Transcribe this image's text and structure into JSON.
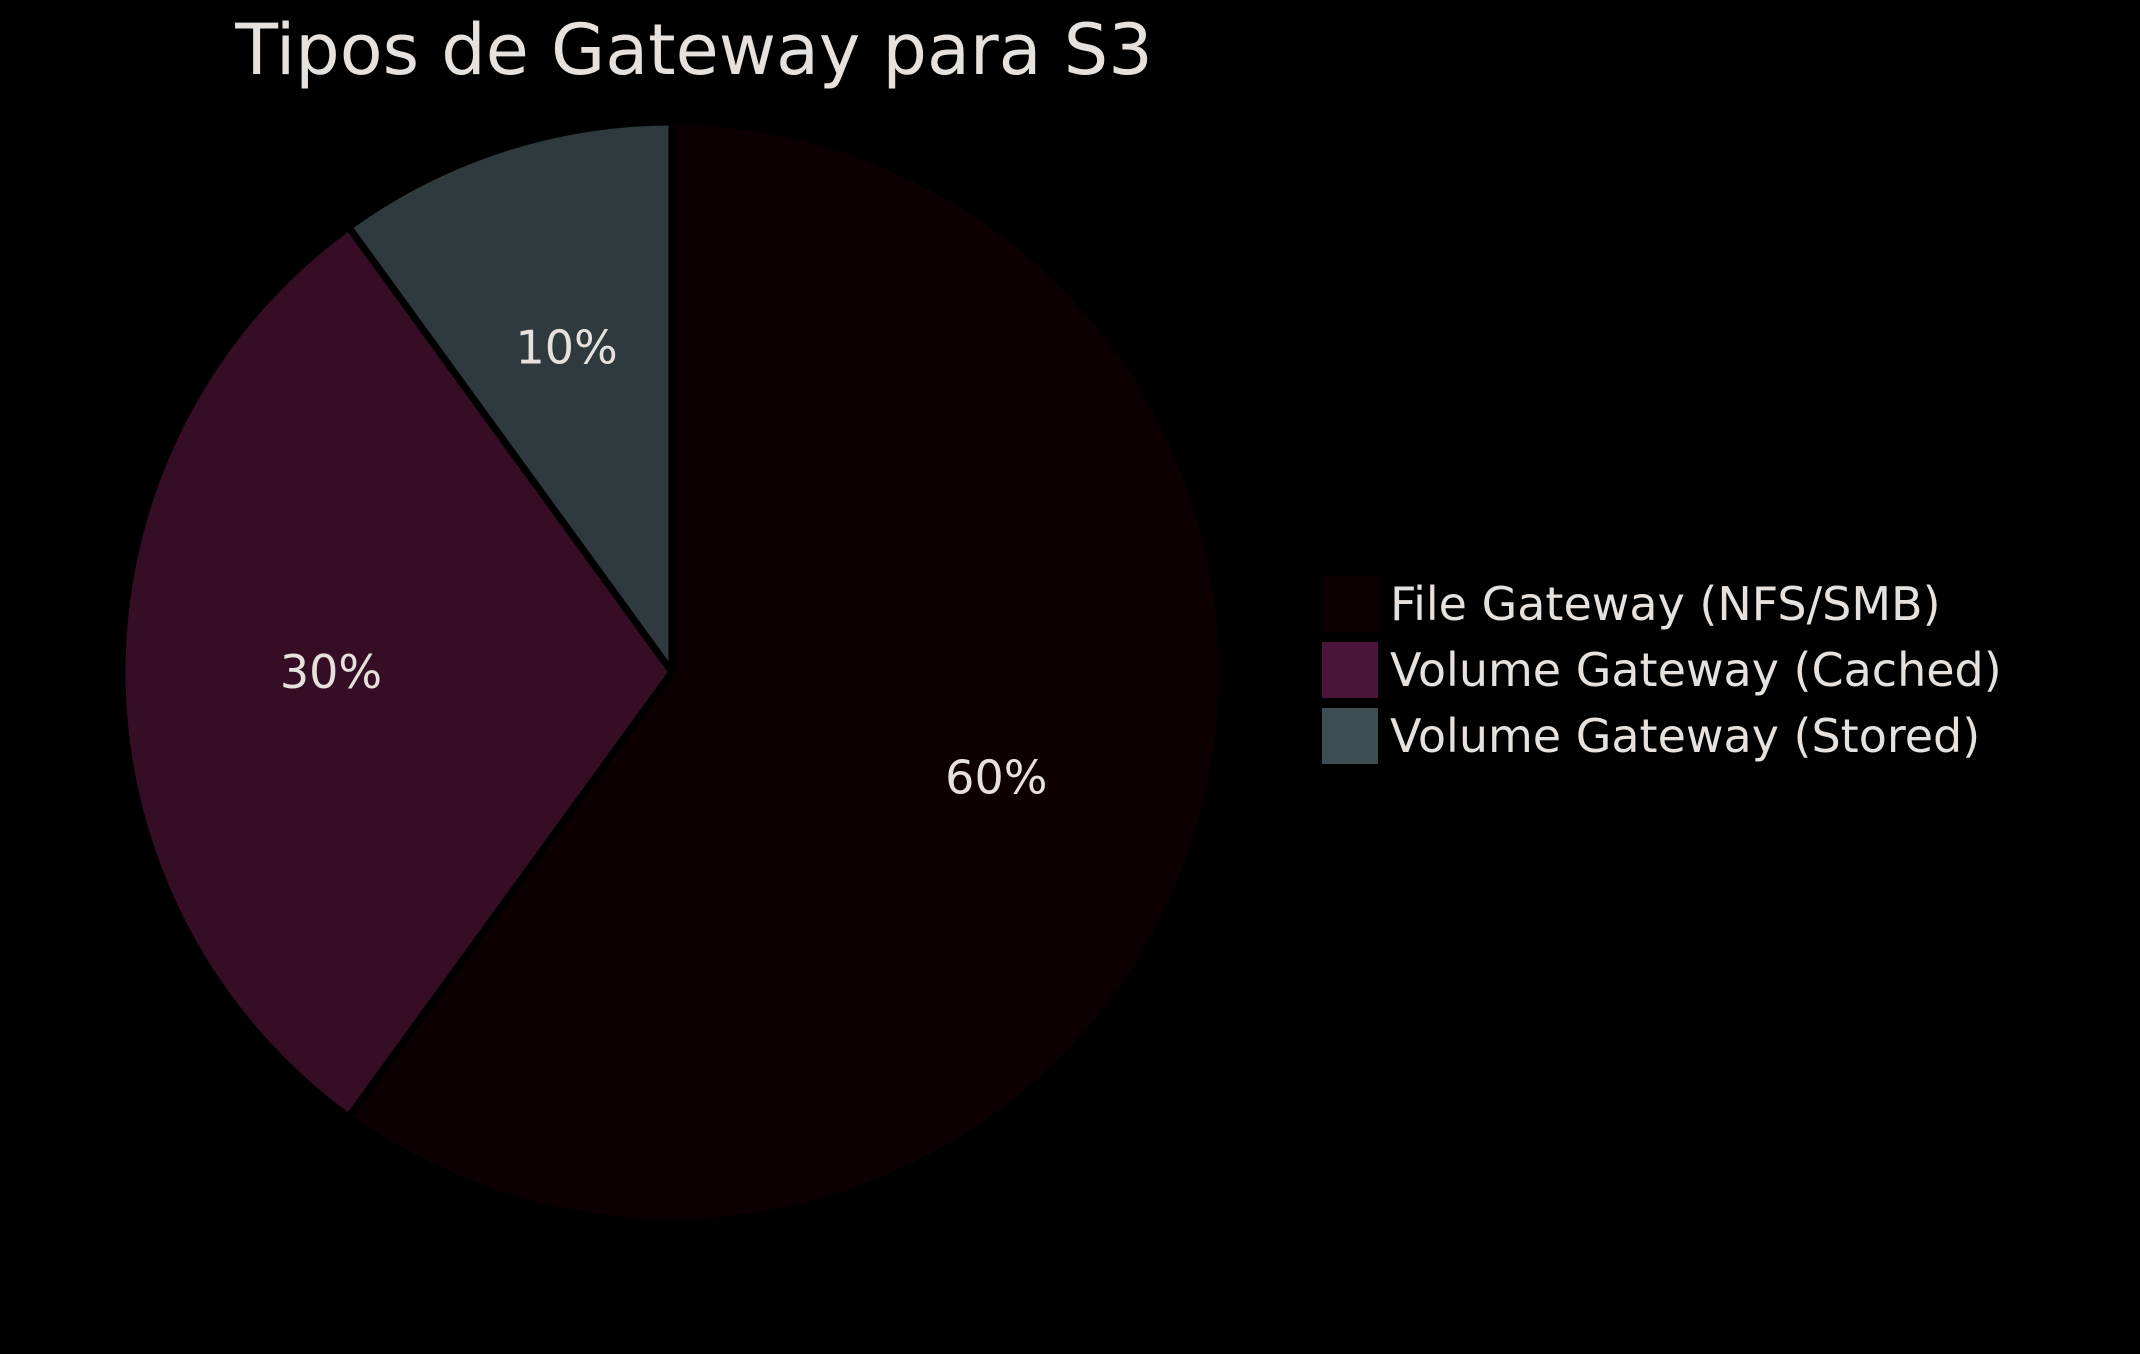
{
  "chart_data": {
    "type": "pie",
    "title": "Tipos de Gateway para S3",
    "slices": [
      {
        "label": "File Gateway (NFS/SMB)",
        "value": 60,
        "display": "60%",
        "color": "#0d0002"
      },
      {
        "label": "Volume Gateway (Cached)",
        "value": 30,
        "display": "30%",
        "color": "#350d24"
      },
      {
        "label": "Volume Gateway (Stored)",
        "value": 10,
        "display": "10%",
        "color": "#2e3a3e"
      }
    ],
    "legend_colors": [
      "#0d0002",
      "#4a1438",
      "#3d4e53"
    ],
    "start_angle": "top",
    "direction": "clockwise",
    "legend": "right",
    "separator_color": "#000000",
    "background": "#000000",
    "text_color": "#e6e1dc"
  }
}
